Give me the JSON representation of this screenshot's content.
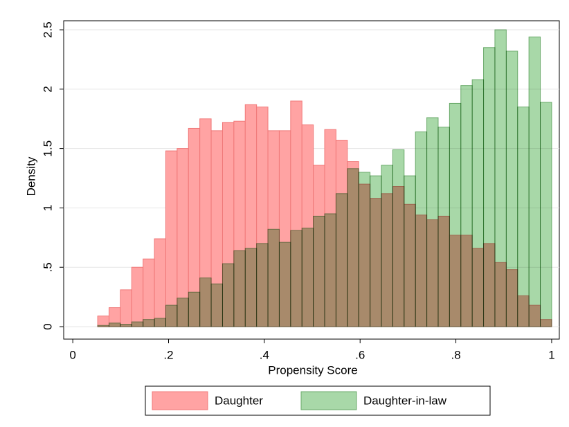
{
  "chart_data": {
    "type": "histogram",
    "x_label": "Propensity Score",
    "y_label": "Density",
    "bins": [
      0.052,
      0.0757,
      0.0994,
      0.1231,
      0.1468,
      0.1705,
      0.1942,
      0.2179,
      0.2416,
      0.2653,
      0.289,
      0.3127,
      0.3364,
      0.3601,
      0.3838,
      0.4075,
      0.4312,
      0.4549,
      0.4786,
      0.5023,
      0.526,
      0.5497,
      0.5734,
      0.5971,
      0.6208,
      0.6445,
      0.6682,
      0.6919,
      0.7156,
      0.7393,
      0.763,
      0.7867,
      0.8104,
      0.8341,
      0.8578,
      0.8815,
      0.9052,
      0.9289,
      0.9526,
      0.9763,
      1.0
    ],
    "series": [
      {
        "name": "Daughter",
        "color": "#ffa3a3",
        "stroke": "#f07878",
        "values": [
          0.09,
          0.16,
          0.31,
          0.5,
          0.57,
          0.74,
          1.48,
          1.5,
          1.67,
          1.75,
          1.65,
          1.72,
          1.73,
          1.87,
          1.85,
          1.65,
          1.65,
          1.9,
          1.7,
          1.36,
          1.66,
          1.57,
          1.39,
          1.2,
          1.08,
          1.12,
          1.18,
          1.03,
          0.94,
          0.9,
          0.93,
          0.77,
          0.77,
          0.66,
          0.7,
          0.54,
          0.48,
          0.26,
          0.18,
          0.06
        ]
      },
      {
        "name": "Daughter-in-law",
        "color": "#a8d8a8",
        "stroke": "#6aaa6a",
        "values": [
          0.01,
          0.03,
          0.02,
          0.04,
          0.06,
          0.07,
          0.18,
          0.24,
          0.29,
          0.41,
          0.36,
          0.53,
          0.64,
          0.66,
          0.7,
          0.82,
          0.71,
          0.81,
          0.83,
          0.93,
          0.95,
          1.12,
          1.33,
          1.3,
          1.27,
          1.36,
          1.49,
          1.27,
          1.64,
          1.76,
          1.68,
          1.88,
          2.03,
          2.08,
          2.35,
          2.5,
          2.32,
          1.85,
          2.44,
          1.89
        ]
      }
    ],
    "xlim": [
      -0.019,
      1.016
    ],
    "ylim": [
      -0.105,
      2.576
    ],
    "xticks": [
      0,
      {
        "value": 0.2,
        "label": ".2"
      },
      {
        "value": 0.4,
        "label": ".4"
      },
      {
        "value": 0.6,
        "label": ".6"
      },
      {
        "value": 0.8,
        "label": ".8"
      },
      1
    ],
    "yticks": [
      0,
      {
        "value": 0.5,
        "label": ".5"
      },
      1,
      1.5,
      2,
      2.5
    ],
    "grid": true
  }
}
